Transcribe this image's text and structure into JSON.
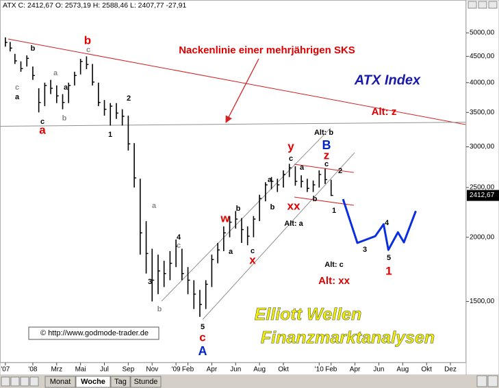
{
  "chart_data": {
    "type": "ohlc",
    "title": "ATX C: 2412,67 O: 2573,19 H: 2588,46 L: 2407,77 -27,91",
    "log_scale": true,
    "xlim": [
      -2.75,
      36.26
    ],
    "ylim": [
      1140,
      5550
    ],
    "yticks": [
      {
        "value": 1500,
        "label": "1500,00"
      },
      {
        "value": 2000,
        "label": "2000,00"
      },
      {
        "value": 2500,
        "label": "2500,00"
      },
      {
        "value": 3000,
        "label": "3000,00"
      },
      {
        "value": 3500,
        "label": "3500,00"
      },
      {
        "value": 4000,
        "label": "4000,00"
      },
      {
        "value": 4500,
        "label": "4500,00"
      },
      {
        "value": 5000,
        "label": "5000,00"
      }
    ],
    "xticks": [
      {
        "value": -2.3,
        "label": "'07"
      },
      {
        "value": 0,
        "label": "'08"
      },
      {
        "value": 2,
        "label": "Mrz"
      },
      {
        "value": 4,
        "label": "Mai"
      },
      {
        "value": 6,
        "label": "Jul"
      },
      {
        "value": 8,
        "label": "Sep"
      },
      {
        "value": 10,
        "label": "Nov"
      },
      {
        "value": 12,
        "label": "'09"
      },
      {
        "value": 13,
        "label": "Feb"
      },
      {
        "value": 15,
        "label": "Apr"
      },
      {
        "value": 17,
        "label": "Jun"
      },
      {
        "value": 19,
        "label": "Aug"
      },
      {
        "value": 21,
        "label": "Okt"
      },
      {
        "value": 24,
        "label": "'10"
      },
      {
        "value": 25,
        "label": "Feb"
      },
      {
        "value": 27,
        "label": "Apr"
      },
      {
        "value": 29,
        "label": "Jun"
      },
      {
        "value": 31,
        "label": "Aug"
      },
      {
        "value": 33,
        "label": "Okt"
      },
      {
        "value": 35,
        "label": "Dez"
      }
    ],
    "color": "#000000",
    "x": [
      -2.3,
      -1.9,
      -1.5,
      -1.0,
      -0.5,
      0,
      0.5,
      1.0,
      1.5,
      2.0,
      2.5,
      3.0,
      3.5,
      4.0,
      4.5,
      5.0,
      5.5,
      6.0,
      6.5,
      7.0,
      7.5,
      8.0,
      8.5,
      9.0,
      9.5,
      10.0,
      10.5,
      11.0,
      11.5,
      12.0,
      12.5,
      13.0,
      13.5,
      14.0,
      14.5,
      15.0,
      15.5,
      16.0,
      16.5,
      17.0,
      17.5,
      18.0,
      18.5,
      19.0,
      19.5,
      20.0,
      20.5,
      21.0,
      21.5,
      22.0,
      22.5,
      23.0,
      23.5,
      24.0,
      24.5,
      25.0
    ],
    "high": [
      4900,
      4800,
      4550,
      4400,
      4520,
      4300,
      3900,
      4000,
      4050,
      3950,
      3800,
      4000,
      4200,
      4450,
      4500,
      4350,
      4000,
      3700,
      3650,
      3650,
      3550,
      3450,
      3050,
      2600,
      2150,
      1900,
      1850,
      1800,
      1880,
      1980,
      1900,
      1750,
      1650,
      1580,
      1650,
      1850,
      1950,
      2100,
      2200,
      2250,
      2180,
      2100,
      2200,
      2420,
      2560,
      2620,
      2600,
      2700,
      2780,
      2750,
      2640,
      2600,
      2580,
      2700,
      2720,
      2588.46
    ],
    "low": [
      4700,
      4600,
      4350,
      4200,
      4300,
      4050,
      3500,
      3600,
      3800,
      3650,
      3550,
      3650,
      3950,
      4150,
      4250,
      3950,
      3600,
      3450,
      3300,
      3400,
      3300,
      2950,
      2500,
      1850,
      1700,
      1500,
      1550,
      1600,
      1650,
      1750,
      1650,
      1550,
      1450,
      1400,
      1450,
      1600,
      1780,
      1880,
      2000,
      2080,
      1950,
      1930,
      2000,
      2150,
      2350,
      2480,
      2450,
      2500,
      2620,
      2520,
      2500,
      2450,
      2450,
      2500,
      2540,
      2407.77
    ],
    "close": [
      4790,
      4670,
      4410,
      4260,
      4460,
      4130,
      3660,
      3950,
      3900,
      3770,
      3660,
      3950,
      4130,
      4400,
      4340,
      4010,
      3660,
      3550,
      3600,
      3490,
      3440,
      3040,
      2610,
      2040,
      1860,
      1650,
      1720,
      1700,
      1780,
      1920,
      1700,
      1650,
      1550,
      1480,
      1620,
      1810,
      1890,
      2040,
      2140,
      2170,
      2070,
      2010,
      2170,
      2380,
      2530,
      2570,
      2530,
      2650,
      2730,
      2570,
      2570,
      2490,
      2530,
      2650,
      2590,
      2412.67
    ],
    "price_marker": {
      "value": 2412.67,
      "label": "2412,67"
    },
    "projection": {
      "color": "#0a2ee0",
      "x": [
        26.0,
        27.2,
        28.7,
        29.4,
        29.8,
        30.6,
        31.1,
        32.1
      ],
      "values": [
        2373,
        1950,
        2010,
        2120,
        1890,
        2045,
        1955,
        2250
      ]
    },
    "trendlines": [
      {
        "color": "#d42020",
        "x": [
          -2.07,
          36.26
        ],
        "values": [
          4864,
          3315
        ]
      },
      {
        "color": "#909090",
        "x": [
          -2.75,
          36.26
        ],
        "values": [
          3290,
          3350
        ]
      },
      {
        "color": "#909090",
        "x": [
          10.79,
          24.96
        ],
        "values": [
          1502,
          3265
        ]
      },
      {
        "color": "#909090",
        "x": [
          14.23,
          26.97
        ],
        "values": [
          1383,
          2923
        ]
      },
      {
        "color": "#d42020",
        "x": [
          21.92,
          26.91
        ],
        "values": [
          2775,
          2674
        ]
      },
      {
        "color": "#d42020",
        "x": [
          21.92,
          26.91
        ],
        "values": [
          2395,
          2308
        ]
      }
    ],
    "annotations": [
      "Nackenlinie einer mehrjährigen SKS",
      "ATX Index",
      "Alt: z",
      "b",
      "c",
      "b",
      "c",
      "a",
      "a",
      "a",
      "b",
      "c",
      "a",
      "2",
      "1",
      "a",
      "3",
      "b",
      "4",
      "c",
      "5",
      "c",
      "A",
      "w",
      "b",
      "a",
      "c",
      "x",
      "b",
      "a",
      "c",
      "y",
      "a",
      "xx",
      "b",
      "Alt: a",
      "Alt: b",
      "B",
      "z",
      "c",
      "2",
      "1",
      "Alt: c",
      "Alt: xx",
      "3",
      "4",
      "5",
      "1",
      "Elliott Wellen",
      "Finanzmarktanalysen",
      "© http://www.godmode-trader.de"
    ]
  },
  "ui": {
    "tabs": [
      "Monat",
      "Woche",
      "Tag",
      "Stunde"
    ]
  }
}
